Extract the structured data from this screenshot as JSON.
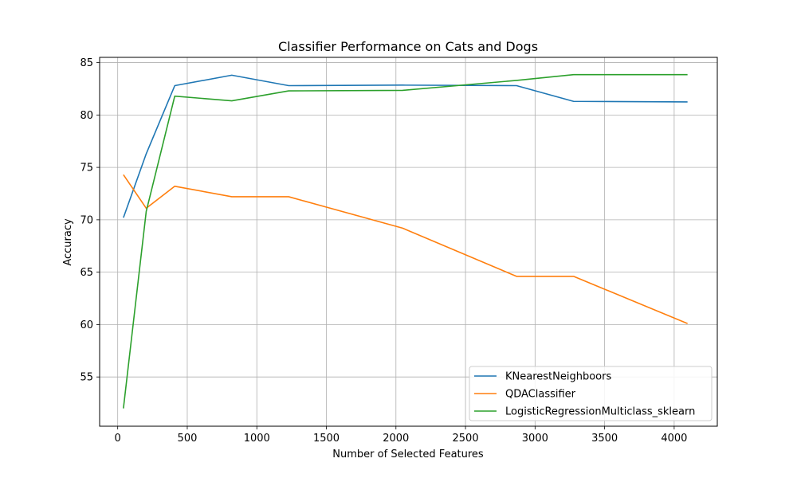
{
  "chart_data": {
    "type": "line",
    "title": "Classifier Performance on Cats and Dogs",
    "xlabel": "Number of Selected Features",
    "ylabel": "Accuracy",
    "xlim": [
      -130,
      4310
    ],
    "ylim": [
      50.3,
      85.5
    ],
    "xticks": [
      0,
      500,
      1000,
      1500,
      2000,
      2500,
      3000,
      3500,
      4000
    ],
    "yticks": [
      55,
      60,
      65,
      70,
      75,
      80,
      85
    ],
    "grid": true,
    "legend_position": "lower right",
    "series": [
      {
        "name": "KNearestNeighboors",
        "color": "#1f77b4",
        "x": [
          41,
          205,
          410,
          820,
          1229,
          2048,
          2867,
          3277,
          4096
        ],
        "y": [
          70.2,
          76.3,
          82.8,
          83.8,
          82.8,
          82.85,
          82.8,
          81.3,
          81.25
        ]
      },
      {
        "name": "QDAClassifier",
        "color": "#ff7f0e",
        "x": [
          41,
          205,
          410,
          820,
          1229,
          2048,
          2867,
          3277,
          4096
        ],
        "y": [
          74.3,
          71.1,
          73.2,
          72.2,
          72.2,
          69.2,
          64.6,
          64.6,
          60.1
        ]
      },
      {
        "name": "LogisticRegressionMulticlass_sklearn",
        "color": "#2ca02c",
        "x": [
          41,
          205,
          410,
          820,
          1229,
          2048,
          2867,
          3277,
          4096
        ],
        "y": [
          52.0,
          70.8,
          81.8,
          81.35,
          82.3,
          82.35,
          83.3,
          83.85,
          83.85
        ]
      }
    ]
  }
}
